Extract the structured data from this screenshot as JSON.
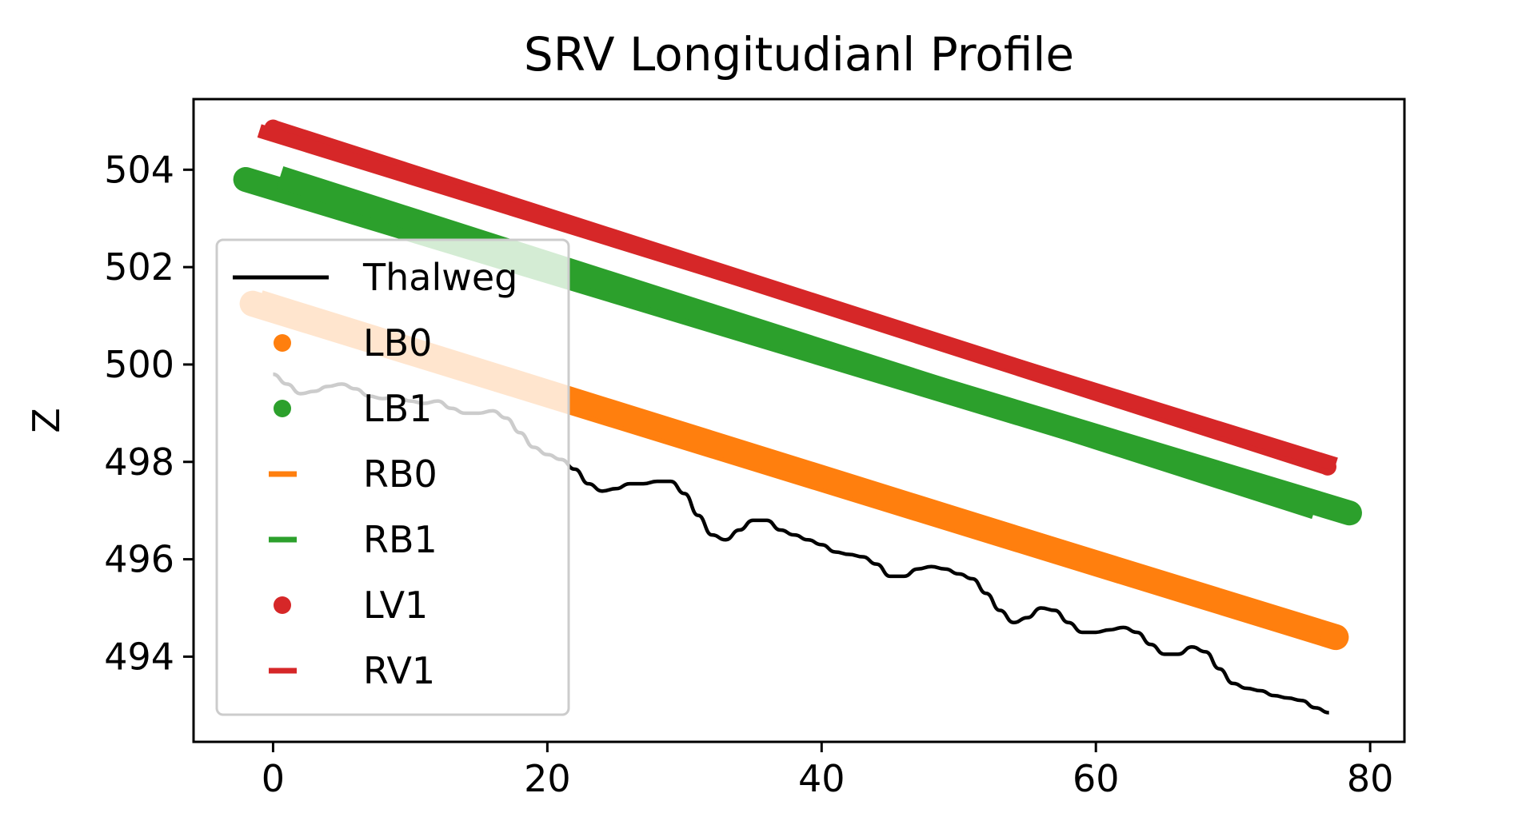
{
  "chart_data": {
    "type": "line",
    "title": "SRV Longitudianl Profile",
    "xlabel": "",
    "ylabel": "Z",
    "xlim": [
      -5.8,
      82.5
    ],
    "ylim": [
      492.25,
      505.45
    ],
    "xticks": [
      0,
      20,
      40,
      60,
      80
    ],
    "yticks": [
      494,
      496,
      498,
      500,
      502,
      504
    ],
    "grid": false,
    "legend_position": "center-left",
    "series": [
      {
        "name": "Thalweg",
        "kind": "line",
        "color": "#000000",
        "x": [
          0,
          1,
          2,
          3,
          4,
          5,
          6,
          7,
          8,
          9,
          10,
          11,
          12,
          13,
          14,
          15,
          16,
          17,
          18,
          19,
          20,
          21,
          22,
          23,
          24,
          25,
          26,
          27,
          28,
          29,
          30,
          31,
          32,
          33,
          34,
          35,
          36,
          37,
          38,
          39,
          40,
          41,
          42,
          43,
          44,
          45,
          46,
          47,
          48,
          49,
          50,
          51,
          52,
          53,
          54,
          55,
          56,
          57,
          58,
          59,
          60,
          61,
          62,
          63,
          64,
          65,
          66,
          67,
          68,
          69,
          70,
          71,
          72,
          73,
          74,
          75,
          76,
          77
        ],
        "y": [
          499.8,
          499.6,
          499.4,
          499.45,
          499.55,
          499.6,
          499.5,
          499.35,
          499.3,
          499.35,
          499.25,
          499.2,
          499.25,
          499.1,
          499.0,
          499.0,
          499.05,
          498.9,
          498.6,
          498.3,
          498.15,
          498.05,
          497.85,
          497.55,
          497.4,
          497.45,
          497.55,
          497.55,
          497.6,
          497.6,
          497.35,
          496.9,
          496.5,
          496.4,
          496.6,
          496.8,
          496.8,
          496.6,
          496.5,
          496.4,
          496.3,
          496.15,
          496.1,
          496.05,
          495.9,
          495.65,
          495.65,
          495.8,
          495.85,
          495.8,
          495.7,
          495.6,
          495.3,
          494.95,
          494.7,
          494.8,
          495.0,
          494.95,
          494.7,
          494.5,
          494.5,
          494.55,
          494.6,
          494.5,
          494.25,
          494.05,
          494.05,
          494.2,
          494.1,
          493.75,
          493.45,
          493.35,
          493.3,
          493.2,
          493.15,
          493.1,
          492.95,
          492.85
        ]
      },
      {
        "name": "LB0",
        "kind": "scatter",
        "color": "#ff7f0e",
        "x_start": -1.5,
        "x_end": 77.5,
        "y_start": 501.25,
        "y_end": 494.4,
        "band": 0.3
      },
      {
        "name": "LB1",
        "kind": "scatter",
        "color": "#2ca02c",
        "x_start": -2.0,
        "x_end": 78.5,
        "y_start": 503.8,
        "y_end": 496.95,
        "band": 0.28
      },
      {
        "name": "RB0",
        "kind": "dash",
        "color": "#ff7f0e",
        "x_start": -1.0,
        "x_end": 76.5,
        "y_start": 501.3,
        "y_end": 494.5,
        "band": 0.3
      },
      {
        "name": "RB1",
        "kind": "dash",
        "color": "#2ca02c",
        "x_start": 0.5,
        "x_end": 76.0,
        "y_start": 503.85,
        "y_end": 497.05,
        "band": 0.3
      },
      {
        "name": "LV1",
        "kind": "scatter",
        "color": "#d62728",
        "x_start": 0,
        "x_end": 76.9,
        "y_start": 504.85,
        "y_end": 497.9,
        "band": 0.12
      },
      {
        "name": "RV1",
        "kind": "dash",
        "color": "#d62728",
        "x_start": -1.0,
        "x_end": 77.5,
        "y_start": 504.8,
        "y_end": 497.95,
        "band": 0.12
      }
    ],
    "legend_faded_region": {
      "x_max": 21.3,
      "y_min": 497.4
    }
  }
}
